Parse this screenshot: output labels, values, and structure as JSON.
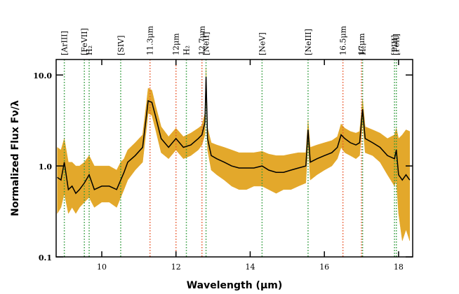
{
  "chart_data": {
    "type": "spectrum",
    "xlabel": "Wavelength (μm)",
    "ylabel": "Normalized Flux Fν/λ",
    "xlim": [
      8.77,
      18.38
    ],
    "xticks": [
      10,
      12,
      14,
      16,
      18
    ],
    "ylim": [
      0.1,
      14.8
    ],
    "log_y": true,
    "yticks": [
      0.1,
      {
        "value": 1,
        "label": "1.0"
      },
      {
        "value": 10,
        "label": "10.0"
      }
    ],
    "color": "#000000",
    "band_color": "#e3a82b",
    "x": [
      8.8,
      8.9,
      8.99,
      9.1,
      9.2,
      9.3,
      9.4,
      9.53,
      9.66,
      9.8,
      10.0,
      10.2,
      10.4,
      10.51,
      10.6,
      10.7,
      10.9,
      11.1,
      11.2,
      11.25,
      11.35,
      11.45,
      11.6,
      11.8,
      12.0,
      12.2,
      12.4,
      12.6,
      12.7,
      12.78,
      12.81,
      12.85,
      12.95,
      13.1,
      13.3,
      13.5,
      13.7,
      13.9,
      14.1,
      14.32,
      14.5,
      14.7,
      14.9,
      15.1,
      15.3,
      15.5,
      15.56,
      15.62,
      15.8,
      16.0,
      16.2,
      16.35,
      16.45,
      16.55,
      16.7,
      16.85,
      16.95,
      17.03,
      17.1,
      17.3,
      17.5,
      17.7,
      17.89,
      17.94,
      18.0,
      18.1,
      18.2,
      18.3
    ],
    "values": [
      0.75,
      0.7,
      1.1,
      0.55,
      0.6,
      0.5,
      0.55,
      0.65,
      0.8,
      0.55,
      0.6,
      0.6,
      0.55,
      0.7,
      0.85,
      1.1,
      1.3,
      1.6,
      3.5,
      5.2,
      5.0,
      3.5,
      2.0,
      1.6,
      2.0,
      1.6,
      1.7,
      2.0,
      2.2,
      3.0,
      9.5,
      2.0,
      1.3,
      1.2,
      1.1,
      1.0,
      0.95,
      0.95,
      0.95,
      1.0,
      0.9,
      0.85,
      0.85,
      0.9,
      0.95,
      1.0,
      2.5,
      1.1,
      1.2,
      1.3,
      1.4,
      1.6,
      2.2,
      2.0,
      1.8,
      1.7,
      1.8,
      4.2,
      2.0,
      1.8,
      1.6,
      1.3,
      1.2,
      1.5,
      0.8,
      0.7,
      0.8,
      0.7
    ],
    "lower": [
      0.3,
      0.35,
      0.5,
      0.3,
      0.35,
      0.3,
      0.35,
      0.4,
      0.45,
      0.35,
      0.4,
      0.4,
      0.35,
      0.45,
      0.55,
      0.7,
      0.9,
      1.1,
      2.5,
      3.8,
      3.6,
      2.5,
      1.4,
      1.2,
      1.5,
      1.2,
      1.3,
      1.5,
      1.7,
      2.2,
      7,
      1.5,
      0.9,
      0.8,
      0.7,
      0.6,
      0.55,
      0.55,
      0.6,
      0.6,
      0.55,
      0.5,
      0.55,
      0.55,
      0.6,
      0.65,
      1.8,
      0.7,
      0.8,
      0.9,
      1.0,
      1.2,
      1.6,
      1.4,
      1.3,
      1.2,
      1.3,
      3.0,
      1.4,
      1.3,
      1.1,
      0.8,
      0.6,
      0.7,
      0.3,
      0.15,
      0.2,
      0.15
    ],
    "upper": [
      1.6,
      1.5,
      2.0,
      1.1,
      1.1,
      1.0,
      1.0,
      1.1,
      1.3,
      1.0,
      1.0,
      1.0,
      0.9,
      1.1,
      1.2,
      1.5,
      1.8,
      2.2,
      4.8,
      7.2,
      6.8,
      4.6,
      2.7,
      2.1,
      2.6,
      2.1,
      2.3,
      2.6,
      2.8,
      3.8,
      12,
      2.6,
      1.8,
      1.7,
      1.6,
      1.5,
      1.4,
      1.4,
      1.4,
      1.45,
      1.35,
      1.3,
      1.3,
      1.35,
      1.4,
      1.4,
      3.2,
      1.6,
      1.7,
      1.8,
      1.9,
      2.1,
      2.9,
      2.6,
      2.4,
      2.3,
      2.4,
      5.5,
      2.7,
      2.5,
      2.3,
      2.0,
      2.2,
      2.6,
      2.0,
      2.2,
      2.5,
      2.4
    ],
    "lines": [
      {
        "x": 8.99,
        "label": "[ArIII]",
        "color": "#2e9a3a"
      },
      {
        "x": 9.53,
        "label": "[FeVII]",
        "color": "#2e9a3a"
      },
      {
        "x": 9.66,
        "label": "H₂",
        "color": "#2e9a3a"
      },
      {
        "x": 10.51,
        "label": "[SIV]",
        "color": "#2e9a3a"
      },
      {
        "x": 11.3,
        "label": "11.3μm",
        "color": "#e8562a"
      },
      {
        "x": 12.0,
        "label": "12μm",
        "color": "#e8562a"
      },
      {
        "x": 12.28,
        "label": "H₂",
        "color": "#2e9a3a"
      },
      {
        "x": 12.7,
        "label": "12.7μm",
        "color": "#e8562a"
      },
      {
        "x": 12.81,
        "label": "[NeII]",
        "color": "#2e9a3a"
      },
      {
        "x": 14.32,
        "label": "[NeV]",
        "color": "#2e9a3a"
      },
      {
        "x": 15.56,
        "label": "[NeIII]",
        "color": "#2e9a3a"
      },
      {
        "x": 16.5,
        "label": "16.5μm",
        "color": "#e8562a"
      },
      {
        "x": 17.0,
        "label": "17μm",
        "color": "#e8562a"
      },
      {
        "x": 17.03,
        "label": "H₂",
        "color": "#2e9a3a"
      },
      {
        "x": 17.89,
        "label": "[PIII]",
        "color": "#2e9a3a"
      },
      {
        "x": 17.94,
        "label": "[FeII]",
        "color": "#2e9a3a"
      }
    ]
  }
}
